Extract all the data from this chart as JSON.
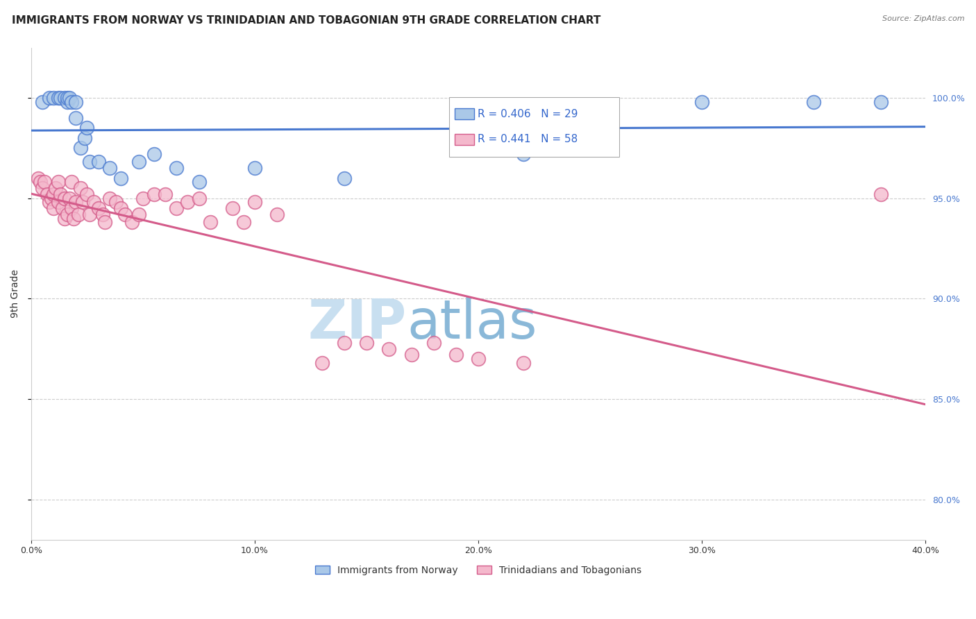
{
  "title": "IMMIGRANTS FROM NORWAY VS TRINIDADIAN AND TOBAGONIAN 9TH GRADE CORRELATION CHART",
  "source": "Source: ZipAtlas.com",
  "ylabel": "9th Grade",
  "ytick_values": [
    1.0,
    0.95,
    0.9,
    0.85,
    0.8
  ],
  "xtick_values": [
    0.0,
    0.1,
    0.2,
    0.3,
    0.4
  ],
  "xlim": [
    0.0,
    0.4
  ],
  "ylim": [
    0.78,
    1.025
  ],
  "blue_R": 0.406,
  "blue_N": 29,
  "pink_R": 0.441,
  "pink_N": 58,
  "blue_scatter_x": [
    0.005,
    0.008,
    0.01,
    0.012,
    0.013,
    0.015,
    0.016,
    0.016,
    0.017,
    0.018,
    0.02,
    0.02,
    0.022,
    0.024,
    0.025,
    0.026,
    0.03,
    0.035,
    0.04,
    0.048,
    0.055,
    0.065,
    0.075,
    0.1,
    0.14,
    0.22,
    0.3,
    0.35,
    0.38
  ],
  "blue_scatter_y": [
    0.998,
    1.0,
    1.0,
    1.0,
    1.0,
    1.0,
    0.998,
    1.0,
    1.0,
    0.998,
    0.998,
    0.99,
    0.975,
    0.98,
    0.985,
    0.968,
    0.968,
    0.965,
    0.96,
    0.968,
    0.972,
    0.965,
    0.958,
    0.965,
    0.96,
    0.972,
    0.998,
    0.998,
    0.998
  ],
  "pink_scatter_x": [
    0.003,
    0.004,
    0.005,
    0.006,
    0.007,
    0.008,
    0.009,
    0.01,
    0.01,
    0.011,
    0.012,
    0.012,
    0.013,
    0.014,
    0.015,
    0.015,
    0.016,
    0.017,
    0.018,
    0.018,
    0.019,
    0.02,
    0.021,
    0.022,
    0.023,
    0.025,
    0.026,
    0.028,
    0.03,
    0.032,
    0.033,
    0.035,
    0.038,
    0.04,
    0.042,
    0.045,
    0.048,
    0.05,
    0.055,
    0.06,
    0.065,
    0.07,
    0.075,
    0.08,
    0.09,
    0.095,
    0.1,
    0.11,
    0.13,
    0.14,
    0.15,
    0.16,
    0.17,
    0.18,
    0.19,
    0.2,
    0.22,
    0.38
  ],
  "pink_scatter_y": [
    0.96,
    0.958,
    0.955,
    0.958,
    0.952,
    0.948,
    0.95,
    0.952,
    0.945,
    0.955,
    0.958,
    0.948,
    0.952,
    0.945,
    0.95,
    0.94,
    0.942,
    0.95,
    0.945,
    0.958,
    0.94,
    0.948,
    0.942,
    0.955,
    0.948,
    0.952,
    0.942,
    0.948,
    0.945,
    0.942,
    0.938,
    0.95,
    0.948,
    0.945,
    0.942,
    0.938,
    0.942,
    0.95,
    0.952,
    0.952,
    0.945,
    0.948,
    0.95,
    0.938,
    0.945,
    0.938,
    0.948,
    0.942,
    0.868,
    0.878,
    0.878,
    0.875,
    0.872,
    0.878,
    0.872,
    0.87,
    0.868,
    0.952
  ],
  "blue_line_color": "#4878CF",
  "pink_line_color": "#D45B8A",
  "blue_scatter_facecolor": "#aac8e8",
  "pink_scatter_facecolor": "#f4b8cc",
  "grid_color": "#cccccc",
  "background_color": "#ffffff",
  "legend_R_color": "#3366cc",
  "watermark_zip_color": "#c8dff0",
  "watermark_atlas_color": "#8ab8d8",
  "title_fontsize": 11,
  "axis_label_fontsize": 10,
  "tick_fontsize": 9,
  "legend_fontsize": 11,
  "right_tick_color": "#4878CF"
}
